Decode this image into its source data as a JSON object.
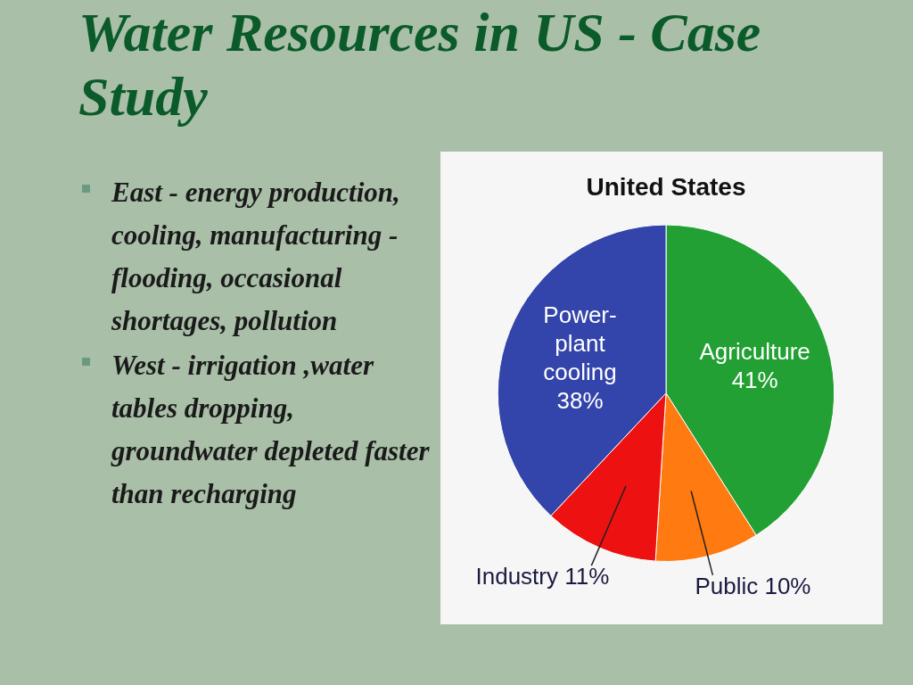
{
  "chart_data": [
    {
      "type": "other",
      "title": "Water Resources in US - Case Study",
      "annotations": [
        "East - energy production, cooling, manufacturing - flooding, occasional shortages, pollution",
        "West - irrigation ,water tables dropping,\ngroundwater depleted faster than recharging"
      ]
    },
    {
      "type": "pie",
      "title": "United States",
      "categories": [
        "Agriculture",
        "Public",
        "Industry",
        "Power-plant cooling"
      ],
      "values": [
        41,
        10,
        11,
        38
      ],
      "colors": [
        "#22a033",
        "#ff7a10",
        "#ee1111",
        "#3344aa"
      ],
      "value_labels": [
        "41%",
        "10%",
        "11%",
        "38%"
      ]
    }
  ]
}
